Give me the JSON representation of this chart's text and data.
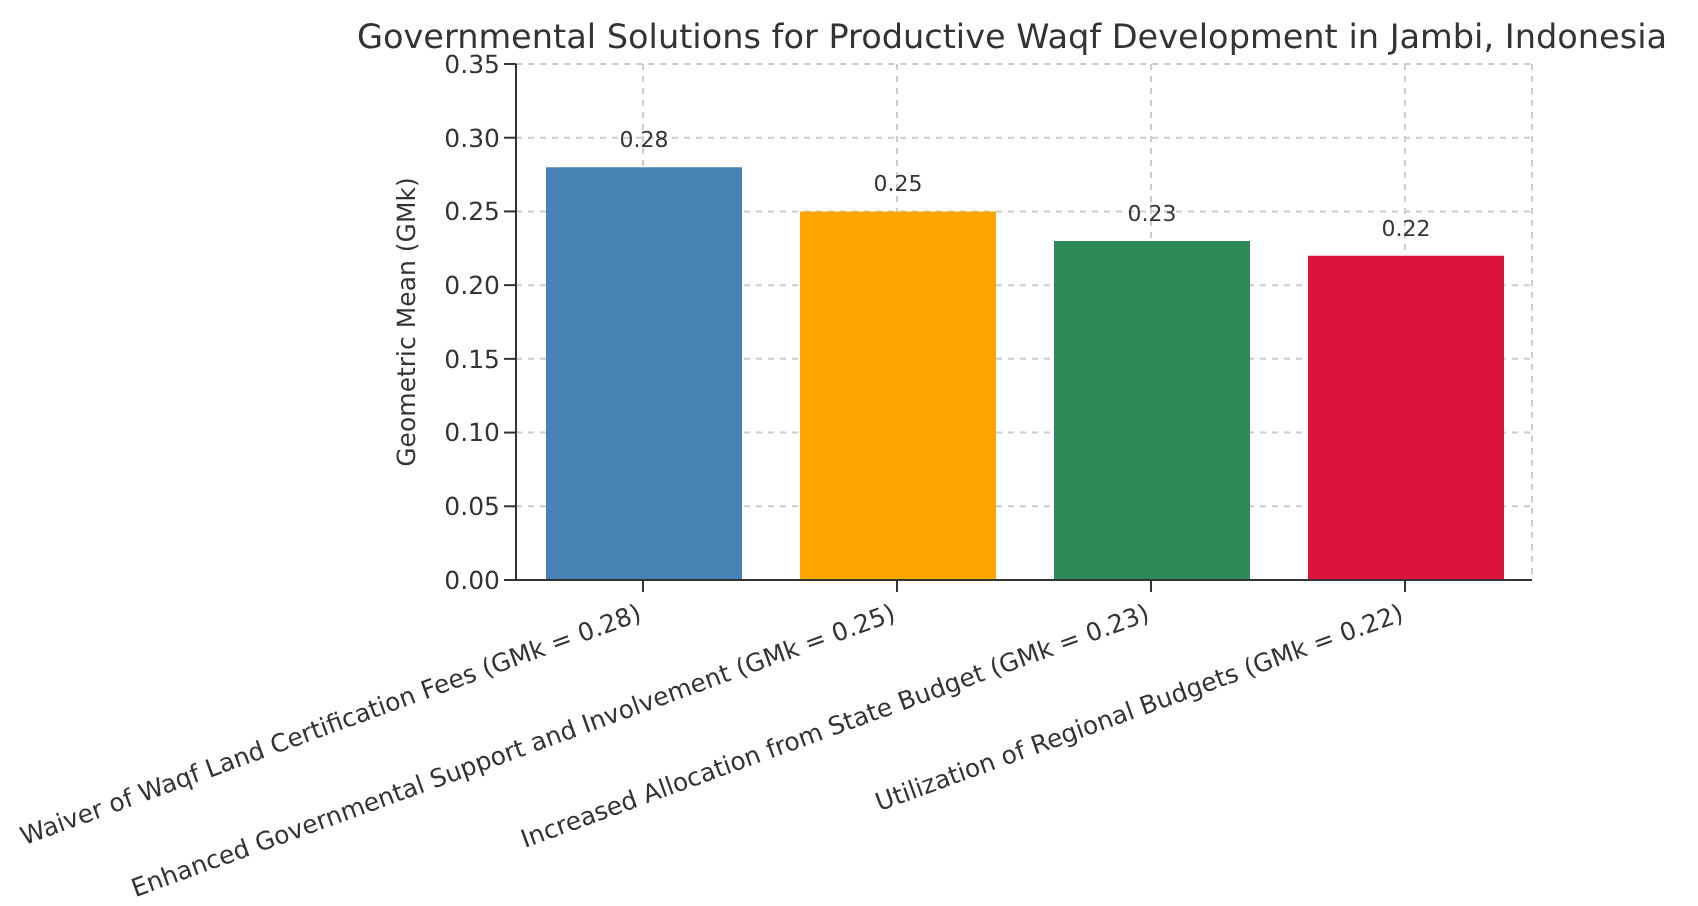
{
  "chart_data": {
    "type": "bar",
    "title": "Governmental Solutions for Productive Waqf Development in Jambi, Indonesia",
    "ylabel": "Geometric Mean (GMk)",
    "categories": [
      "Waiver of Waqf Land Certification Fees (GMk = 0.28)",
      "Enhanced Governmental Support and Involvement (GMk = 0.25)",
      "Increased Allocation from State Budget (GMk = 0.23)",
      "Utilization of Regional Budgets (GMk = 0.22)"
    ],
    "values": [
      0.28,
      0.25,
      0.23,
      0.22
    ],
    "colors": [
      "#4682b4",
      "#ffa500",
      "#2e8b57",
      "#dc143c"
    ],
    "ylim": [
      0,
      0.35
    ],
    "yticks": [
      {
        "value": 0,
        "label": "0.00"
      },
      {
        "value": 0.05,
        "label": "0.05"
      },
      {
        "value": 0.1,
        "label": "0.10"
      },
      {
        "value": 0.15,
        "label": "0.15"
      },
      {
        "value": 0.2,
        "label": "0.20"
      },
      {
        "value": 0.25,
        "label": "0.25"
      },
      {
        "value": 0.3,
        "label": "0.30"
      },
      {
        "value": 0.35,
        "label": "0.35"
      }
    ],
    "grid": true,
    "data_labels": true
  }
}
